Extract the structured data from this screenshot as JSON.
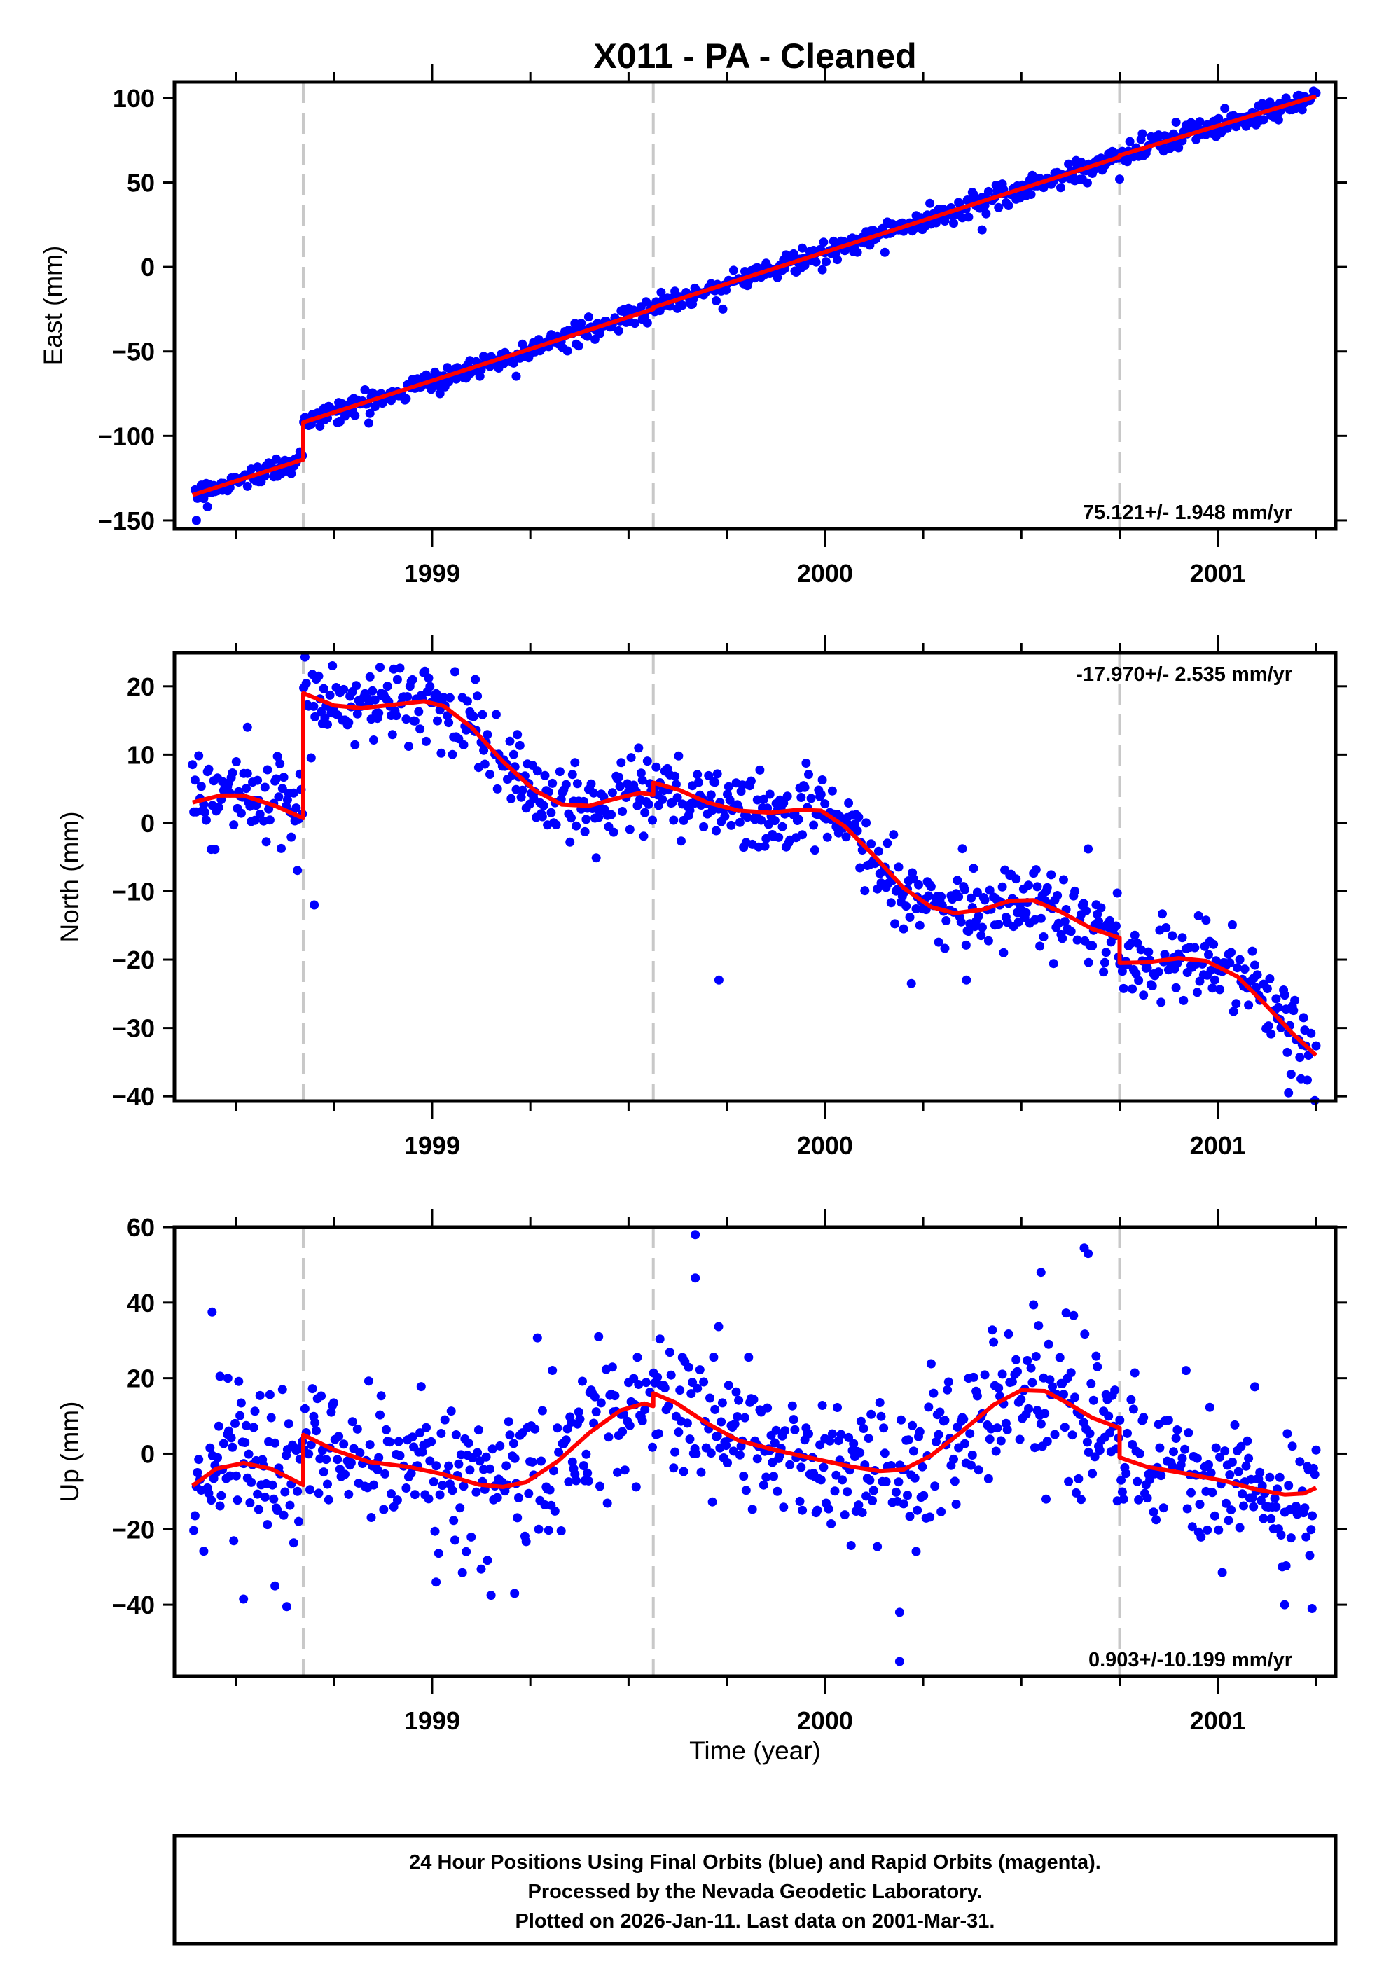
{
  "chart_data": [
    {
      "type": "scatter",
      "panel": "east",
      "title": "X011  - PA - Cleaned",
      "ylabel": "East (mm)",
      "xlabel": "",
      "xlim": [
        1998.344,
        2001.3
      ],
      "ylim": [
        -155,
        109.5
      ],
      "x_ticks": [
        1999,
        2000,
        2001
      ],
      "x_tick_labels": [
        "1999",
        "2000",
        "2001"
      ],
      "x_minor_step": 0.25,
      "y_ticks": [
        100,
        50,
        0,
        -50,
        -100,
        -150
      ],
      "y_tick_labels": [
        "100",
        "50",
        "0",
        "−50",
        "−100",
        "−150"
      ],
      "rate_text": "75.121+/- 1.948 mm/yr",
      "rate_position": "bottom-right",
      "grid": false,
      "offset_epochs": [
        1998.672,
        1999.563,
        2000.75
      ],
      "data_range": [
        1998.39,
        2001.25
      ],
      "series": [
        {
          "name": "Final Orbits",
          "color": "#0000ff",
          "kind": "points",
          "noise_mm": 3.2,
          "outliers": [
            [
              1998.4,
              -150
            ],
            [
              1998.64,
              -117
            ],
            [
              1999.02,
              -75
            ],
            [
              1999.74,
              -25
            ],
            [
              2000.4,
              22
            ],
            [
              2000.6,
              47
            ],
            [
              2000.75,
              52
            ]
          ]
        },
        {
          "name": "Model",
          "color": "#ff0000",
          "kind": "line",
          "points": [
            [
              1998.39,
              -135
            ],
            [
              1998.672,
              -114
            ],
            [
              1998.672,
              -92
            ],
            [
              1999.563,
              -25
            ],
            [
              1999.563,
              -24
            ],
            [
              2000.75,
              65
            ],
            [
              2000.75,
              66
            ],
            [
              2001.25,
              101
            ]
          ]
        }
      ]
    },
    {
      "type": "scatter",
      "panel": "north",
      "ylabel": "North (mm)",
      "xlabel": "",
      "xlim": [
        1998.344,
        2001.3
      ],
      "ylim": [
        -40.7,
        24.9
      ],
      "x_ticks": [
        1999,
        2000,
        2001
      ],
      "x_tick_labels": [
        "1999",
        "2000",
        "2001"
      ],
      "x_minor_step": 0.25,
      "y_ticks": [
        20,
        10,
        0,
        -10,
        -20,
        -30,
        -40
      ],
      "y_tick_labels": [
        "20",
        "10",
        "0",
        "−10",
        "−20",
        "−30",
        "−40"
      ],
      "rate_text": "-17.970+/- 2.535 mm/yr",
      "rate_position": "top-right",
      "grid": false,
      "offset_epochs": [
        1998.672,
        1999.563,
        2000.75
      ],
      "data_range": [
        1998.39,
        2001.25
      ],
      "series": [
        {
          "name": "Final Orbits",
          "color": "#0000ff",
          "kind": "points",
          "noise_mm": 3.0,
          "outliers": [
            [
              1998.7,
              -12
            ],
            [
              1999.73,
              -23
            ],
            [
              2000.22,
              -23.5
            ],
            [
              2000.36,
              -23
            ],
            [
              2000.67,
              -3.8
            ],
            [
              2001.18,
              -39.5
            ],
            [
              1998.53,
              14
            ],
            [
              1999.11,
              21
            ]
          ]
        },
        {
          "name": "Model",
          "color": "#ff0000",
          "kind": "line",
          "points": [
            [
              1998.39,
              3
            ],
            [
              1998.46,
              4
            ],
            [
              1998.52,
              4
            ],
            [
              1998.6,
              2.5
            ],
            [
              1998.672,
              0.7
            ],
            [
              1998.672,
              19
            ],
            [
              1998.75,
              17.2
            ],
            [
              1998.82,
              16.8
            ],
            [
              1998.9,
              17.3
            ],
            [
              1998.98,
              17.8
            ],
            [
              1999.03,
              17.1
            ],
            [
              1999.1,
              14
            ],
            [
              1999.18,
              9
            ],
            [
              1999.26,
              4.8
            ],
            [
              1999.33,
              2.7
            ],
            [
              1999.4,
              2.5
            ],
            [
              1999.47,
              3.6
            ],
            [
              1999.53,
              4.4
            ],
            [
              1999.563,
              4.1
            ],
            [
              1999.563,
              5.9
            ],
            [
              1999.63,
              4.8
            ],
            [
              1999.7,
              3.0
            ],
            [
              1999.78,
              1.8
            ],
            [
              1999.86,
              1.5
            ],
            [
              1999.93,
              1.9
            ],
            [
              1999.99,
              1.8
            ],
            [
              2000.05,
              -0.5
            ],
            [
              2000.12,
              -4.5
            ],
            [
              2000.2,
              -9.5
            ],
            [
              2000.27,
              -12.3
            ],
            [
              2000.33,
              -13.2
            ],
            [
              2000.4,
              -12.7
            ],
            [
              2000.47,
              -11.4
            ],
            [
              2000.53,
              -11.3
            ],
            [
              2000.6,
              -13.0
            ],
            [
              2000.68,
              -15.5
            ],
            [
              2000.75,
              -16.8
            ],
            [
              2000.75,
              -20.5
            ],
            [
              2000.82,
              -20.4
            ],
            [
              2000.9,
              -19.8
            ],
            [
              2000.97,
              -20.2
            ],
            [
              2001.05,
              -22.5
            ],
            [
              2001.12,
              -26.5
            ],
            [
              2001.19,
              -30.8
            ],
            [
              2001.25,
              -34
            ]
          ]
        }
      ]
    },
    {
      "type": "scatter",
      "panel": "up",
      "ylabel": "Up (mm)",
      "xlabel": "Time (year)",
      "xlim": [
        1998.344,
        2001.3
      ],
      "ylim": [
        -58.9,
        60
      ],
      "x_ticks": [
        1999,
        2000,
        2001
      ],
      "x_tick_labels": [
        "1999",
        "2000",
        "2001"
      ],
      "x_minor_step": 0.25,
      "y_ticks": [
        60,
        40,
        20,
        0,
        -20,
        -40
      ],
      "y_tick_labels": [
        "60",
        "40",
        "20",
        "0",
        "−20",
        "−40"
      ],
      "rate_text": "0.903+/-10.199 mm/yr",
      "rate_position": "bottom-right",
      "grid": false,
      "offset_epochs": [
        1998.672,
        1999.563,
        2000.75
      ],
      "data_range": [
        1998.39,
        2001.25
      ],
      "series": [
        {
          "name": "Final Orbits",
          "color": "#0000ff",
          "kind": "points",
          "noise_mm": 9.5,
          "outliers": [
            [
              1998.44,
              37.5
            ],
            [
              1998.46,
              20.5
            ],
            [
              1998.48,
              20
            ],
            [
              1998.52,
              -38.5
            ],
            [
              1998.6,
              -35
            ],
            [
              1998.63,
              -40.5
            ],
            [
              1999.67,
              58
            ],
            [
              1999.67,
              46.5
            ],
            [
              2000.19,
              -42
            ],
            [
              2000.19,
              -55
            ],
            [
              2000.55,
              48
            ],
            [
              2000.66,
              54.5
            ],
            [
              2000.67,
              53
            ],
            [
              2001.17,
              -40
            ],
            [
              2001.24,
              -41
            ],
            [
              1999.21,
              -37
            ],
            [
              1999.15,
              -37.5
            ],
            [
              1999.01,
              -34
            ]
          ]
        },
        {
          "name": "Model",
          "color": "#ff0000",
          "kind": "line",
          "points": [
            [
              1998.39,
              -8.5
            ],
            [
              1998.45,
              -4
            ],
            [
              1998.52,
              -2.5
            ],
            [
              1998.59,
              -4
            ],
            [
              1998.672,
              -8.3
            ],
            [
              1998.672,
              5
            ],
            [
              1998.75,
              1
            ],
            [
              1998.84,
              -2.2
            ],
            [
              1998.94,
              -3.5
            ],
            [
              1999.03,
              -5.5
            ],
            [
              1999.12,
              -8.2
            ],
            [
              1999.18,
              -8.8
            ],
            [
              1999.24,
              -7.5
            ],
            [
              1999.32,
              -2
            ],
            [
              1999.4,
              5.5
            ],
            [
              1999.48,
              11.5
            ],
            [
              1999.54,
              13.3
            ],
            [
              1999.563,
              12.6
            ],
            [
              1999.563,
              16
            ],
            [
              1999.62,
              13.5
            ],
            [
              1999.7,
              8
            ],
            [
              1999.78,
              3.5
            ],
            [
              1999.88,
              0.8
            ],
            [
              1999.98,
              -1.5
            ],
            [
              2000.07,
              -3.5
            ],
            [
              2000.14,
              -4.6
            ],
            [
              2000.2,
              -4.2
            ],
            [
              2000.27,
              -0.5
            ],
            [
              2000.35,
              6
            ],
            [
              2000.43,
              13
            ],
            [
              2000.5,
              16.8
            ],
            [
              2000.56,
              16.6
            ],
            [
              2000.62,
              13.3
            ],
            [
              2000.68,
              9.5
            ],
            [
              2000.75,
              6.8
            ],
            [
              2000.75,
              -1
            ],
            [
              2000.82,
              -3.5
            ],
            [
              2000.92,
              -5.3
            ],
            [
              2001.02,
              -7.3
            ],
            [
              2001.1,
              -9.5
            ],
            [
              2001.17,
              -10.8
            ],
            [
              2001.22,
              -10.5
            ],
            [
              2001.25,
              -9
            ]
          ]
        }
      ]
    }
  ],
  "footer": {
    "lines": [
      "24 Hour Positions Using Final Orbits (blue) and Rapid Orbits (magenta).",
      "Processed by the Nevada Geodetic Laboratory.",
      "Plotted on 2026-Jan-11. Last data on 2001-Mar-31."
    ]
  }
}
